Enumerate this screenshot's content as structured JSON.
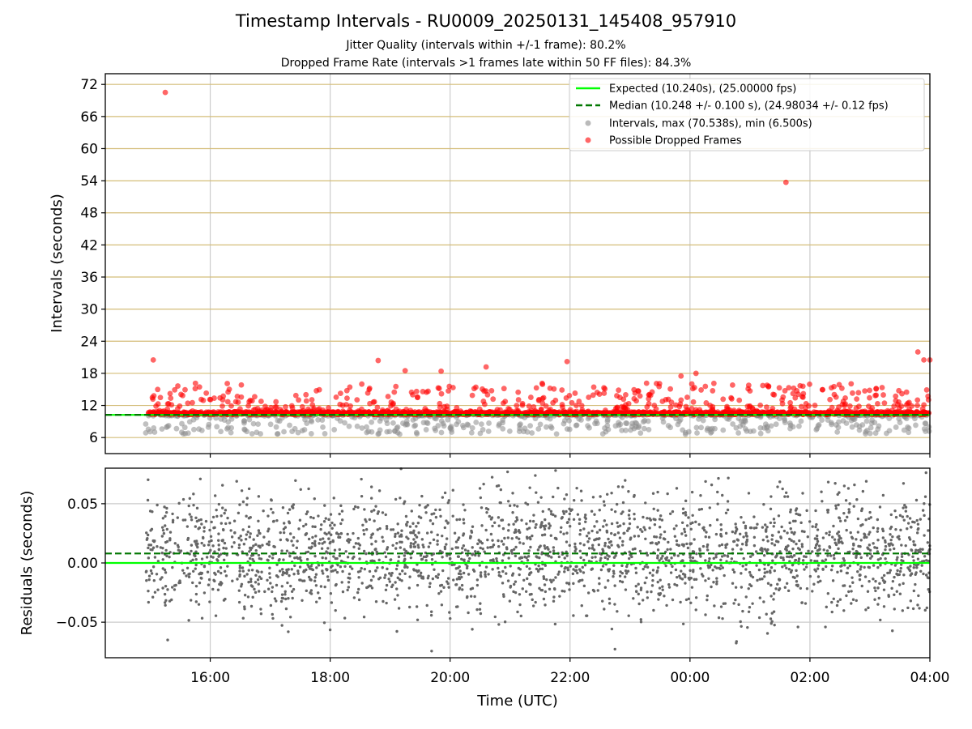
{
  "figure": {
    "title": "Timestamp Intervals - RU0009_20250131_145408_957910",
    "subtitle_line1": "Jitter Quality (intervals within +/-1 frame): 80.2%",
    "subtitle_line2": "Dropped Frame Rate (intervals >1 frames late within 50 FF files): 84.3%"
  },
  "colors": {
    "expected": "#00ff00",
    "median": "#007700",
    "intervals": "#8c8c8c",
    "dropped": "#ff0000",
    "residuals": "#666666",
    "hgrid_top": "#d4bd79",
    "grid": "#cccccc"
  },
  "chart_data": [
    {
      "type": "scatter",
      "ylabel": "Intervals (seconds)",
      "xlabel": "",
      "x_unit": "hours since 00:00 UTC (day rollover at 24)",
      "xlim": [
        14.25,
        28.0
      ],
      "ylim": [
        3.0,
        74.0
      ],
      "yticks": [
        6,
        12,
        18,
        24,
        30,
        36,
        42,
        48,
        54,
        60,
        66,
        72
      ],
      "ytick_labels": [
        "6",
        "12",
        "18",
        "24",
        "30",
        "36",
        "42",
        "48",
        "54",
        "60",
        "66",
        "72"
      ],
      "xticks": [
        16,
        18,
        20,
        22,
        24,
        26,
        28
      ],
      "grid": true,
      "legend_position": "top-right",
      "legend": [
        {
          "label": "Expected (10.240s), (25.00000 fps)",
          "style": "line-solid"
        },
        {
          "label": "Median (10.248 +/- 0.100 s), (24.98034 +/- 0.12 fps)",
          "style": "line-dashed"
        },
        {
          "label": "Intervals, max (70.538s), min (6.500s)",
          "style": "marker-gray"
        },
        {
          "label": "Possible Dropped Frames",
          "style": "marker-red"
        }
      ],
      "expected_interval": 10.24,
      "median_interval": 10.248,
      "max_interval": 70.538,
      "min_interval": 6.5,
      "series_x_start": 14.92,
      "series_x_end": 28.0,
      "sample_count": 4700,
      "highlighted_outliers": [
        {
          "x": 15.25,
          "y": 70.5
        },
        {
          "x": 15.05,
          "y": 20.5
        },
        {
          "x": 18.8,
          "y": 20.4
        },
        {
          "x": 19.25,
          "y": 18.5
        },
        {
          "x": 19.85,
          "y": 18.4
        },
        {
          "x": 20.6,
          "y": 19.2
        },
        {
          "x": 21.95,
          "y": 20.2
        },
        {
          "x": 23.85,
          "y": 17.5
        },
        {
          "x": 24.1,
          "y": 18.0
        },
        {
          "x": 25.6,
          "y": 53.7
        },
        {
          "x": 27.8,
          "y": 22.0
        },
        {
          "x": 27.9,
          "y": 20.5
        },
        {
          "x": 28.0,
          "y": 20.5
        }
      ]
    },
    {
      "type": "scatter",
      "ylabel": "Residuals (seconds)",
      "xlabel": "Time (UTC)",
      "xlim": [
        14.25,
        28.0
      ],
      "ylim": [
        -0.08,
        0.08
      ],
      "yticks": [
        -0.05,
        0.0,
        0.05
      ],
      "ytick_labels": [
        "−0.05",
        "0.00",
        "0.05"
      ],
      "xticks": [
        16,
        18,
        20,
        22,
        24,
        26,
        28
      ],
      "xtick_labels": [
        "16:00",
        "18:00",
        "20:00",
        "22:00",
        "00:00",
        "02:00",
        "04:00"
      ],
      "grid": true,
      "expected_residual": 0.0,
      "median_residual": 0.008,
      "residual_sigma": 0.026,
      "sample_count": 2500
    }
  ]
}
